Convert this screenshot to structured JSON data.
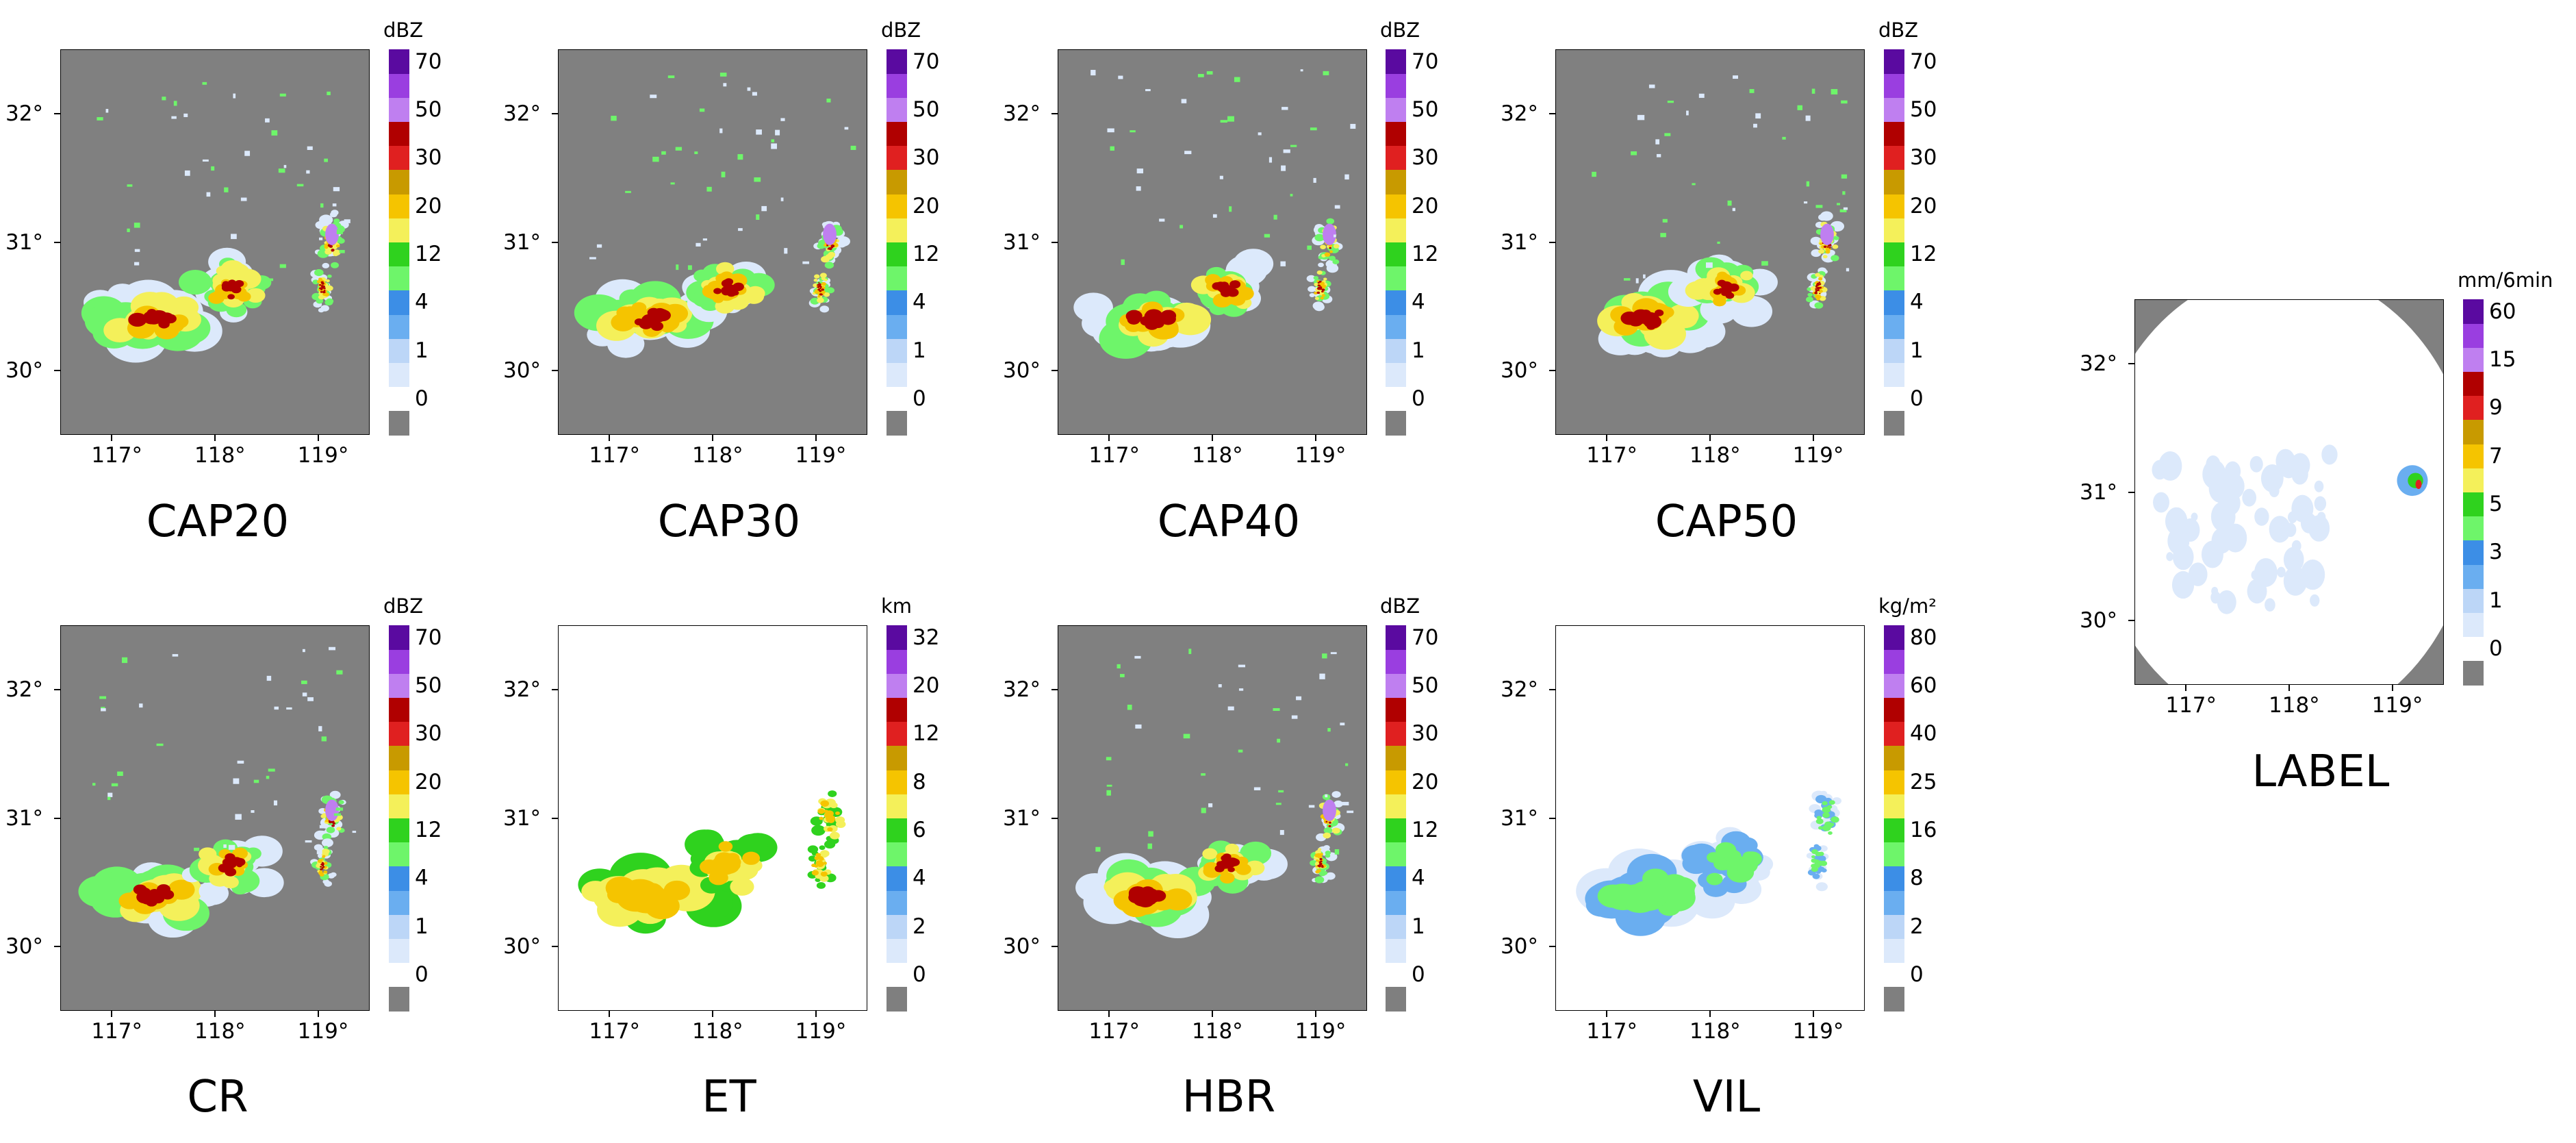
{
  "figure": {
    "colors": {
      "no_data": "#808080",
      "background": "#ffffff"
    },
    "panels": [
      {
        "id": "cap20",
        "title": "CAP20",
        "unit": "dBZ",
        "background": "gray",
        "ticks": [
          "0",
          "1",
          "4",
          "12",
          "20",
          "30",
          "50",
          "70"
        ],
        "colors": [
          "#7f7f7f",
          "#ffffff",
          "#dce9fb",
          "#bcd6f7",
          "#6aaef0",
          "#3c8ee6",
          "#6ef56a",
          "#2fd21e",
          "#f4f05a",
          "#f5c400",
          "#c89a00",
          "#e02020",
          "#b00000",
          "#bf7ff0",
          "#9a3ee0",
          "#5a0aa0"
        ]
      },
      {
        "id": "cap30",
        "title": "CAP30",
        "unit": "dBZ",
        "background": "gray",
        "ticks": [
          "0",
          "1",
          "4",
          "12",
          "20",
          "30",
          "50",
          "70"
        ],
        "colors": [
          "#7f7f7f",
          "#ffffff",
          "#dce9fb",
          "#bcd6f7",
          "#6aaef0",
          "#3c8ee6",
          "#6ef56a",
          "#2fd21e",
          "#f4f05a",
          "#f5c400",
          "#c89a00",
          "#e02020",
          "#b00000",
          "#bf7ff0",
          "#9a3ee0",
          "#5a0aa0"
        ]
      },
      {
        "id": "cap40",
        "title": "CAP40",
        "unit": "dBZ",
        "background": "gray",
        "ticks": [
          "0",
          "1",
          "4",
          "12",
          "20",
          "30",
          "50",
          "70"
        ],
        "colors": [
          "#7f7f7f",
          "#ffffff",
          "#dce9fb",
          "#bcd6f7",
          "#6aaef0",
          "#3c8ee6",
          "#6ef56a",
          "#2fd21e",
          "#f4f05a",
          "#f5c400",
          "#c89a00",
          "#e02020",
          "#b00000",
          "#bf7ff0",
          "#9a3ee0",
          "#5a0aa0"
        ]
      },
      {
        "id": "cap50",
        "title": "CAP50",
        "unit": "dBZ",
        "background": "gray",
        "ticks": [
          "0",
          "1",
          "4",
          "12",
          "20",
          "30",
          "50",
          "70"
        ],
        "colors": [
          "#7f7f7f",
          "#ffffff",
          "#dce9fb",
          "#bcd6f7",
          "#6aaef0",
          "#3c8ee6",
          "#6ef56a",
          "#2fd21e",
          "#f4f05a",
          "#f5c400",
          "#c89a00",
          "#e02020",
          "#b00000",
          "#bf7ff0",
          "#9a3ee0",
          "#5a0aa0"
        ]
      },
      {
        "id": "cr",
        "title": "CR",
        "unit": "dBZ",
        "background": "gray",
        "ticks": [
          "0",
          "1",
          "4",
          "12",
          "20",
          "30",
          "50",
          "70"
        ],
        "colors": [
          "#7f7f7f",
          "#ffffff",
          "#dce9fb",
          "#bcd6f7",
          "#6aaef0",
          "#3c8ee6",
          "#6ef56a",
          "#2fd21e",
          "#f4f05a",
          "#f5c400",
          "#c89a00",
          "#e02020",
          "#b00000",
          "#bf7ff0",
          "#9a3ee0",
          "#5a0aa0"
        ]
      },
      {
        "id": "et",
        "title": "ET",
        "unit": "km",
        "background": "white",
        "ticks": [
          "0",
          "2",
          "4",
          "6",
          "8",
          "12",
          "20",
          "32"
        ],
        "colors": [
          "#7f7f7f",
          "#ffffff",
          "#dce9fb",
          "#bcd6f7",
          "#6aaef0",
          "#3c8ee6",
          "#6ef56a",
          "#2fd21e",
          "#f4f05a",
          "#f5c400",
          "#c89a00",
          "#e02020",
          "#b00000",
          "#bf7ff0",
          "#9a3ee0",
          "#5a0aa0"
        ]
      },
      {
        "id": "hbr",
        "title": "HBR",
        "unit": "dBZ",
        "background": "gray",
        "ticks": [
          "0",
          "1",
          "4",
          "12",
          "20",
          "30",
          "50",
          "70"
        ],
        "colors": [
          "#7f7f7f",
          "#ffffff",
          "#dce9fb",
          "#bcd6f7",
          "#6aaef0",
          "#3c8ee6",
          "#6ef56a",
          "#2fd21e",
          "#f4f05a",
          "#f5c400",
          "#c89a00",
          "#e02020",
          "#b00000",
          "#bf7ff0",
          "#9a3ee0",
          "#5a0aa0"
        ]
      },
      {
        "id": "vil",
        "title": "VIL",
        "unit": "kg/m²",
        "background": "white",
        "ticks": [
          "0",
          "2",
          "8",
          "16",
          "25",
          "40",
          "60",
          "80"
        ],
        "colors": [
          "#7f7f7f",
          "#ffffff",
          "#dce9fb",
          "#bcd6f7",
          "#6aaef0",
          "#3c8ee6",
          "#6ef56a",
          "#2fd21e",
          "#f4f05a",
          "#f5c400",
          "#c89a00",
          "#e02020",
          "#b00000",
          "#bf7ff0",
          "#9a3ee0",
          "#5a0aa0"
        ]
      },
      {
        "id": "label",
        "title": "LABEL",
        "unit": "mm/6min",
        "background": "white",
        "ticks": [
          "0",
          "1",
          "3",
          "5",
          "7",
          "9",
          "15",
          "60"
        ],
        "colors": [
          "#7f7f7f",
          "#ffffff",
          "#dce9fb",
          "#bcd6f7",
          "#6aaef0",
          "#3c8ee6",
          "#6ef56a",
          "#2fd21e",
          "#f4f05a",
          "#f5c400",
          "#c89a00",
          "#e02020",
          "#b00000",
          "#bf7ff0",
          "#9a3ee0",
          "#5a0aa0"
        ]
      }
    ]
  },
  "chart_data": {
    "type": "heatmap",
    "description": "Radar products over a longitude/latitude map",
    "xlabel": "",
    "ylabel": "",
    "xlim": [
      116.5,
      119.5
    ],
    "ylim": [
      29.5,
      32.5
    ],
    "x_ticks": [
      117,
      118,
      119
    ],
    "x_tick_labels": [
      "117°",
      "118°",
      "119°"
    ],
    "y_ticks": [
      30,
      31,
      32
    ],
    "y_tick_labels": [
      "30°",
      "31°",
      "32°"
    ],
    "panels": [
      "CAP20",
      "CAP30",
      "CAP40",
      "CAP50",
      "CR",
      "ET",
      "HBR",
      "VIL",
      "LABEL"
    ]
  }
}
